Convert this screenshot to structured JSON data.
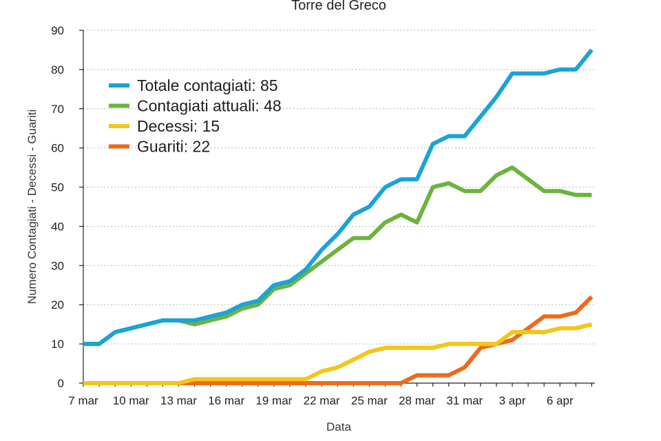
{
  "chart_data": {
    "type": "line",
    "title": "Torre del Greco",
    "xlabel": "Data",
    "ylabel": "Numero Contagiati - Decessi - Guariti",
    "ylim": [
      0,
      90
    ],
    "yticks": [
      0,
      10,
      20,
      30,
      40,
      50,
      60,
      70,
      80,
      90
    ],
    "xlim": [
      0,
      32.2
    ],
    "xticks": [
      {
        "label": "7 mar",
        "x": 0
      },
      {
        "label": "10 mar",
        "x": 3
      },
      {
        "label": "13 mar",
        "x": 6
      },
      {
        "label": "16 mar",
        "x": 9
      },
      {
        "label": "19 mar",
        "x": 12
      },
      {
        "label": "22 mar",
        "x": 15
      },
      {
        "label": "25 mar",
        "x": 18
      },
      {
        "label": "28 mar",
        "x": 21
      },
      {
        "label": "31 mar",
        "x": 24
      },
      {
        "label": "3 apr",
        "x": 27
      },
      {
        "label": "6 apr",
        "x": 30
      }
    ],
    "legend_position": "top-left",
    "series": [
      {
        "name": "Totale contagiati: 85",
        "color": "#1aa3d6",
        "x": [
          0,
          1,
          2,
          3,
          4,
          5,
          6,
          7,
          8,
          9,
          10,
          11,
          12,
          13,
          14,
          15,
          16,
          17,
          18,
          19,
          20,
          21,
          22,
          23,
          24,
          25,
          26,
          27,
          28,
          29,
          30,
          31,
          32
        ],
        "y": [
          10,
          10,
          13,
          14,
          15,
          16,
          16,
          16,
          17,
          18,
          20,
          21,
          25,
          26,
          29,
          34,
          38,
          43,
          45,
          50,
          52,
          52,
          61,
          63,
          63,
          68,
          73,
          79,
          79,
          79,
          80,
          80,
          85
        ]
      },
      {
        "name": "Contagiati attuali: 48",
        "color": "#6db33f",
        "x": [
          0,
          1,
          2,
          3,
          4,
          5,
          6,
          7,
          8,
          9,
          10,
          11,
          12,
          13,
          14,
          15,
          16,
          17,
          18,
          19,
          20,
          21,
          22,
          23,
          24,
          25,
          26,
          27,
          28,
          29,
          30,
          31,
          32
        ],
        "y": [
          10,
          10,
          13,
          14,
          15,
          16,
          16,
          15,
          16,
          17,
          19,
          20,
          24,
          25,
          28,
          31,
          34,
          37,
          37,
          41,
          43,
          41,
          50,
          51,
          49,
          49,
          53,
          55,
          52,
          49,
          49,
          48,
          48
        ]
      },
      {
        "name": "Decessi: 15",
        "color": "#f5c518",
        "x": [
          0,
          1,
          2,
          3,
          4,
          5,
          6,
          7,
          8,
          9,
          10,
          11,
          12,
          13,
          14,
          15,
          16,
          17,
          18,
          19,
          20,
          21,
          22,
          23,
          24,
          25,
          26,
          27,
          28,
          29,
          30,
          31,
          32
        ],
        "y": [
          0,
          0,
          0,
          0,
          0,
          0,
          0,
          1,
          1,
          1,
          1,
          1,
          1,
          1,
          1,
          3,
          4,
          6,
          8,
          9,
          9,
          9,
          9,
          10,
          10,
          10,
          10,
          13,
          13,
          13,
          14,
          14,
          15
        ]
      },
      {
        "name": "Guariti: 22",
        "color": "#ee6a1c",
        "x": [
          0,
          1,
          2,
          3,
          4,
          5,
          6,
          7,
          8,
          9,
          10,
          11,
          12,
          13,
          14,
          15,
          16,
          17,
          18,
          19,
          20,
          21,
          22,
          23,
          24,
          25,
          26,
          27,
          28,
          29,
          30,
          31,
          32
        ],
        "y": [
          0,
          0,
          0,
          0,
          0,
          0,
          0,
          0,
          0,
          0,
          0,
          0,
          0,
          0,
          0,
          0,
          0,
          0,
          0,
          0,
          0,
          2,
          2,
          2,
          4,
          9,
          10,
          11,
          14,
          17,
          17,
          18,
          22
        ]
      }
    ]
  }
}
